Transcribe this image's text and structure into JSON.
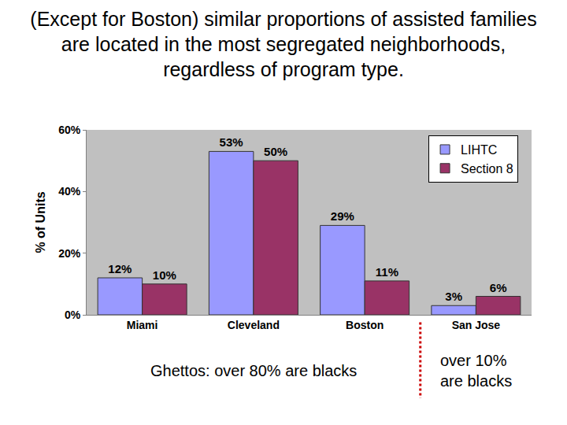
{
  "chart_data": {
    "type": "bar",
    "title": "(Except for Boston) similar proportions of assisted families are located in the most segregated neighborhoods, regardless of program type.",
    "y_label": "% of Units",
    "categories": [
      "Miami",
      "Cleveland",
      "Boston",
      "San Jose"
    ],
    "series": [
      {
        "name": "LIHTC",
        "color": "#9999ff",
        "values": [
          12,
          53,
          29,
          3
        ],
        "value_labels": [
          "12%",
          "53%",
          "29%",
          "3%"
        ]
      },
      {
        "name": "Section 8",
        "color": "#993366",
        "values": [
          10,
          50,
          11,
          6
        ],
        "value_labels": [
          "10%",
          "50%",
          "11%",
          "6%"
        ]
      }
    ],
    "ylim": [
      0,
      60
    ],
    "yticks": [
      {
        "value": 0,
        "label": "0%"
      },
      {
        "value": 20,
        "label": "20%"
      },
      {
        "value": 40,
        "label": "40%"
      },
      {
        "value": 60,
        "label": "60%"
      }
    ],
    "grid": false,
    "legend": "top right",
    "data_labels": true,
    "annotations": [
      "Ghettos: over 80% are blacks",
      "over 10%\nare blacks"
    ]
  }
}
